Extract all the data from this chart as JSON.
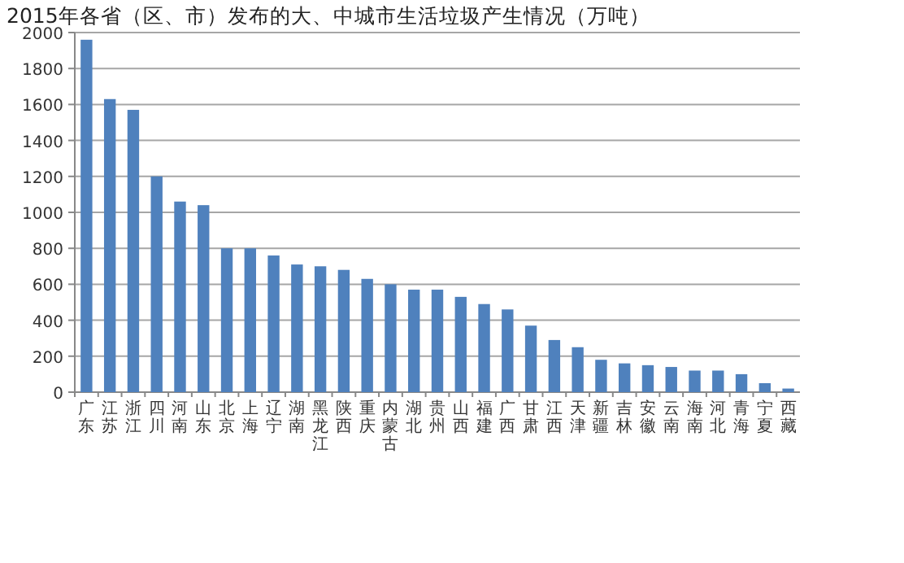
{
  "chart_data": {
    "type": "bar",
    "title": "2015年各省（区、市）发布的大、中城市生活垃圾产生情况（万吨）",
    "categories": [
      "广东",
      "江苏",
      "浙江",
      "四川",
      "河南",
      "山东",
      "北京",
      "上海",
      "辽宁",
      "湖南",
      "黑龙江",
      "陕西",
      "重庆",
      "内蒙古",
      "湖北",
      "贵州",
      "山西",
      "福建",
      "广西",
      "甘肃",
      "江西",
      "天津",
      "新疆",
      "吉林",
      "安徽",
      "云南",
      "海南",
      "河北",
      "青海",
      "宁夏",
      "西藏"
    ],
    "values": [
      1960,
      1630,
      1570,
      1200,
      1060,
      1040,
      800,
      800,
      760,
      710,
      700,
      680,
      630,
      600,
      570,
      570,
      530,
      490,
      460,
      370,
      290,
      250,
      180,
      160,
      150,
      140,
      120,
      120,
      100,
      50,
      20
    ],
    "color": "#4f81bd",
    "ylim": [
      0,
      2000
    ],
    "yticks": [
      0,
      200,
      400,
      600,
      800,
      1000,
      1200,
      1400,
      1600,
      1800,
      2000
    ],
    "grid": "y"
  }
}
